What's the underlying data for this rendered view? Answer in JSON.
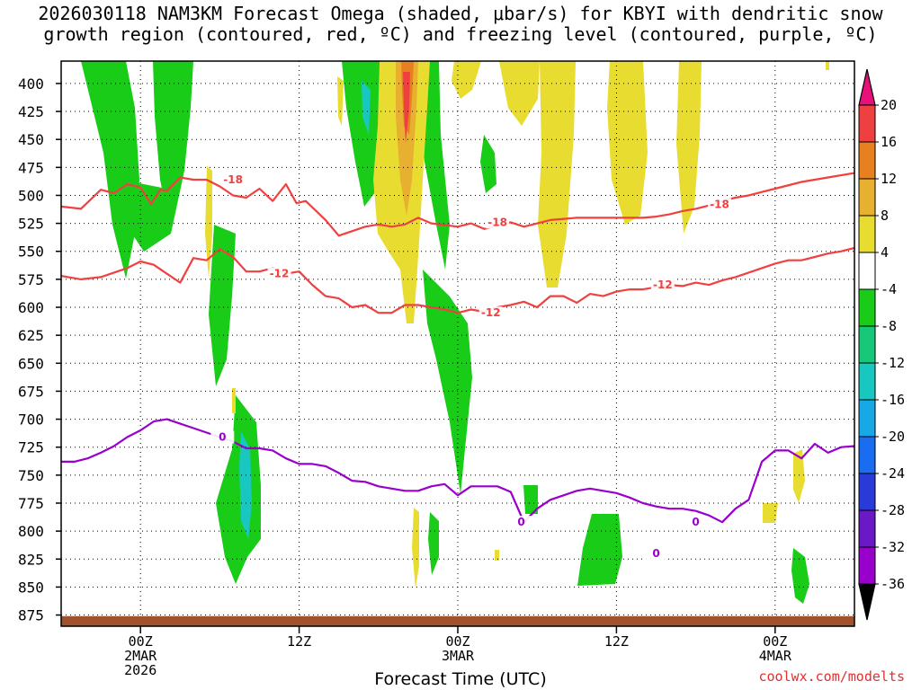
{
  "title": {
    "line1": "2026030118 NAM3KM Forecast Omega (shaded, μbar/s) for KBYI with dendritic snow",
    "line2": "growth region (contoured, red, ºC) and freezing level (contoured, purple, ºC)"
  },
  "x_axis_title": "Forecast Time (UTC)",
  "credit": "coolwx.com/modelts",
  "chart_data": {
    "type": "heatmap",
    "x_unit": "forecast hour from 2026-03-01 18Z",
    "x_range": [
      18,
      78
    ],
    "y_unit": "hPa",
    "y_range": [
      380,
      885
    ],
    "y_ticks": [
      400,
      425,
      450,
      475,
      500,
      525,
      550,
      575,
      600,
      625,
      650,
      675,
      700,
      725,
      750,
      775,
      800,
      825,
      850,
      875
    ],
    "x_ticks": [
      {
        "x": 24,
        "label": "00Z",
        "sub": [
          "2MAR",
          "2026"
        ]
      },
      {
        "x": 36,
        "label": "12Z",
        "sub": []
      },
      {
        "x": 48,
        "label": "00Z",
        "sub": [
          "3MAR"
        ]
      },
      {
        "x": 60,
        "label": "12Z",
        "sub": []
      },
      {
        "x": 72,
        "label": "00Z",
        "sub": [
          "4MAR"
        ]
      }
    ],
    "colorbar": {
      "levels": [
        -36,
        -32,
        -28,
        -24,
        -20,
        -16,
        -12,
        -8,
        -4,
        4,
        8,
        12,
        16,
        20
      ],
      "colors": [
        "#aaaaaa",
        "#9a00cc",
        "#6a18c8",
        "#2a3ad8",
        "#1a6cf0",
        "#18a8e8",
        "#18c8c0",
        "#18c878",
        "#18cc18",
        "#ffffff",
        "#e8dc30",
        "#e8b030",
        "#e88020",
        "#ee4040",
        "#e8107a"
      ],
      "labels": [
        "20",
        "16",
        "12",
        "8",
        "4",
        "-4",
        "-8",
        "-12",
        "-16",
        "-20",
        "-24",
        "-28",
        "-32",
        "-36"
      ]
    },
    "contours": [
      {
        "name": "dgz-minus-18",
        "label": "-18",
        "color": "#f04040",
        "x": [
          18,
          19.5,
          21,
          22,
          23,
          24,
          24.8,
          25.5,
          26,
          27,
          28,
          29,
          30,
          31,
          32,
          33,
          34,
          35,
          35.8,
          36.5,
          38,
          39,
          40,
          41,
          42,
          43,
          44,
          45,
          46,
          48,
          49,
          50,
          51,
          52,
          53,
          55,
          57,
          59,
          61,
          62,
          63,
          64,
          65,
          66,
          67,
          68,
          69,
          70,
          71,
          72,
          74,
          76,
          78
        ],
        "y": [
          510,
          512,
          495,
          498,
          490,
          493,
          508,
          495,
          496,
          484,
          486,
          486,
          492,
          500,
          502,
          494,
          505,
          490,
          507,
          505,
          522,
          536,
          532,
          528,
          526,
          528,
          526,
          520,
          525,
          528,
          525,
          530,
          527,
          524,
          528,
          522,
          520,
          520,
          520,
          520,
          519,
          517,
          514,
          512,
          509,
          505,
          502,
          500,
          497,
          494,
          488,
          484,
          480
        ],
        "label_x": [
          31,
          51,
          67.8
        ],
        "label_y": [
          486,
          524,
          508
        ]
      },
      {
        "name": "dgz-minus-12",
        "label": "-12",
        "color": "#f04040",
        "x": [
          18,
          19.5,
          21,
          22,
          23,
          24,
          25,
          26,
          27,
          28,
          29,
          30,
          31,
          32,
          33,
          34,
          35,
          36,
          37,
          38,
          39,
          40,
          41,
          42,
          43,
          44,
          45,
          46,
          47,
          48,
          49,
          50,
          51,
          52,
          53,
          54,
          55,
          56,
          57,
          58,
          59,
          60,
          61,
          62,
          63,
          64,
          65,
          66,
          67,
          68,
          69,
          70,
          71,
          72,
          73,
          74,
          75,
          76,
          77,
          78
        ],
        "y": [
          572,
          575,
          573,
          569,
          565,
          559,
          562,
          570,
          578,
          556,
          558,
          548,
          555,
          568,
          568,
          565,
          570,
          568,
          580,
          590,
          592,
          600,
          598,
          605,
          605,
          598,
          598,
          600,
          602,
          605,
          602,
          604,
          600,
          598,
          595,
          600,
          590,
          590,
          596,
          588,
          590,
          586,
          584,
          584,
          582,
          580,
          581,
          578,
          580,
          576,
          573,
          569,
          565,
          561,
          558,
          558,
          555,
          552,
          550,
          547
        ],
        "label_x": [
          34.5,
          50.5,
          63.5
        ],
        "label_y": [
          570,
          605,
          580
        ]
      },
      {
        "name": "freezing-level-0",
        "label": "0",
        "color": "#9a00cc",
        "x": [
          18,
          19,
          20,
          21,
          22,
          23,
          24,
          25,
          26,
          27,
          28,
          29,
          30,
          31,
          32,
          33,
          34,
          35,
          36,
          37,
          38,
          39,
          40,
          41,
          42,
          43,
          44,
          45,
          46,
          47,
          48,
          49,
          50,
          51,
          52,
          53,
          54,
          55,
          56,
          57,
          58,
          59,
          60,
          61,
          62,
          63,
          64,
          65,
          66,
          67,
          68,
          69,
          70,
          71,
          72,
          73,
          74,
          75,
          76,
          77,
          78
        ],
        "y": [
          738,
          738,
          735,
          730,
          724,
          716,
          710,
          702,
          700,
          704,
          708,
          712,
          716,
          720,
          726,
          726,
          728,
          735,
          740,
          740,
          742,
          748,
          755,
          756,
          760,
          762,
          764,
          764,
          760,
          758,
          768,
          760,
          760,
          760,
          765,
          792,
          780,
          772,
          768,
          764,
          762,
          764,
          766,
          770,
          775,
          778,
          780,
          780,
          782,
          786,
          792,
          780,
          772,
          738,
          728,
          728,
          735,
          722,
          730,
          725,
          724
        ],
        "label_x": [
          30.2,
          52.8,
          66,
          63
        ],
        "label_y": [
          716,
          792,
          792,
          820
        ]
      }
    ]
  }
}
